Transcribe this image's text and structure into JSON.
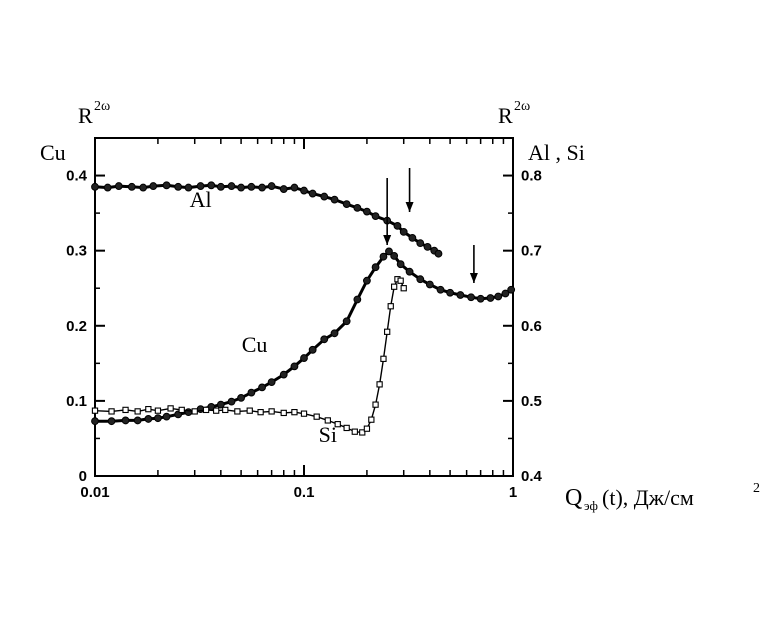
{
  "chart_data": {
    "type": "scatter",
    "x_scale": "log",
    "xlim": [
      0.01,
      1
    ],
    "x_ticks": [
      0.01,
      0.1,
      1
    ],
    "x_tick_labels": [
      "0.01",
      "0.1",
      "1"
    ],
    "ylim_left": [
      0,
      0.45
    ],
    "ylim_right": [
      0.4,
      0.85
    ],
    "y_ticks_left": [
      "0",
      "0.1",
      "0.2",
      "0.3",
      "0.4"
    ],
    "y_ticks_right": [
      "0.4",
      "0.5",
      "0.6",
      "0.7",
      "0.8"
    ],
    "left_axis": {
      "label_top": "R",
      "label_sup": "2ω",
      "label_sub": "Cu"
    },
    "right_axis": {
      "label_top": "R",
      "label_sup": "2ω",
      "label_sub": "Al , Si"
    },
    "xlabel": {
      "main": "Q",
      "sub": "эф",
      "rest": "(t),  Дж/см",
      "sup": "2"
    },
    "series": [
      {
        "name": "Al",
        "axis": "right",
        "marker": "filled-circle",
        "points": [
          [
            0.01,
            0.785
          ],
          [
            0.0115,
            0.784
          ],
          [
            0.013,
            0.786
          ],
          [
            0.015,
            0.785
          ],
          [
            0.017,
            0.784
          ],
          [
            0.019,
            0.786
          ],
          [
            0.022,
            0.787
          ],
          [
            0.025,
            0.785
          ],
          [
            0.028,
            0.784
          ],
          [
            0.032,
            0.786
          ],
          [
            0.036,
            0.787
          ],
          [
            0.04,
            0.785
          ],
          [
            0.045,
            0.786
          ],
          [
            0.05,
            0.784
          ],
          [
            0.056,
            0.785
          ],
          [
            0.063,
            0.784
          ],
          [
            0.07,
            0.786
          ],
          [
            0.08,
            0.782
          ],
          [
            0.09,
            0.784
          ],
          [
            0.1,
            0.78
          ],
          [
            0.11,
            0.776
          ],
          [
            0.125,
            0.772
          ],
          [
            0.14,
            0.768
          ],
          [
            0.16,
            0.762
          ],
          [
            0.18,
            0.757
          ],
          [
            0.2,
            0.752
          ],
          [
            0.22,
            0.746
          ],
          [
            0.25,
            0.74
          ],
          [
            0.28,
            0.733
          ],
          [
            0.3,
            0.725
          ],
          [
            0.33,
            0.717
          ],
          [
            0.36,
            0.71
          ],
          [
            0.39,
            0.705
          ],
          [
            0.42,
            0.7
          ],
          [
            0.44,
            0.696
          ]
        ]
      },
      {
        "name": "Cu",
        "axis": "left",
        "marker": "filled-circle",
        "points": [
          [
            0.01,
            0.073
          ],
          [
            0.012,
            0.073
          ],
          [
            0.014,
            0.074
          ],
          [
            0.016,
            0.074
          ],
          [
            0.018,
            0.076
          ],
          [
            0.02,
            0.077
          ],
          [
            0.022,
            0.079
          ],
          [
            0.025,
            0.082
          ],
          [
            0.028,
            0.085
          ],
          [
            0.032,
            0.089
          ],
          [
            0.036,
            0.092
          ],
          [
            0.04,
            0.095
          ],
          [
            0.045,
            0.099
          ],
          [
            0.05,
            0.104
          ],
          [
            0.056,
            0.111
          ],
          [
            0.063,
            0.118
          ],
          [
            0.07,
            0.125
          ],
          [
            0.08,
            0.135
          ],
          [
            0.09,
            0.146
          ],
          [
            0.1,
            0.157
          ],
          [
            0.11,
            0.168
          ],
          [
            0.125,
            0.182
          ],
          [
            0.14,
            0.19
          ],
          [
            0.16,
            0.206
          ],
          [
            0.18,
            0.235
          ],
          [
            0.2,
            0.26
          ],
          [
            0.22,
            0.278
          ],
          [
            0.24,
            0.292
          ],
          [
            0.255,
            0.299
          ],
          [
            0.27,
            0.293
          ],
          [
            0.29,
            0.282
          ],
          [
            0.32,
            0.272
          ],
          [
            0.36,
            0.262
          ],
          [
            0.4,
            0.255
          ],
          [
            0.45,
            0.248
          ],
          [
            0.5,
            0.244
          ],
          [
            0.56,
            0.241
          ],
          [
            0.63,
            0.238
          ],
          [
            0.7,
            0.236
          ],
          [
            0.78,
            0.237
          ],
          [
            0.85,
            0.239
          ],
          [
            0.92,
            0.243
          ],
          [
            0.98,
            0.248
          ]
        ]
      },
      {
        "name": "Si",
        "axis": "right",
        "marker": "open-square",
        "points": [
          [
            0.01,
            0.487
          ],
          [
            0.012,
            0.486
          ],
          [
            0.014,
            0.488
          ],
          [
            0.016,
            0.486
          ],
          [
            0.018,
            0.489
          ],
          [
            0.02,
            0.487
          ],
          [
            0.023,
            0.49
          ],
          [
            0.026,
            0.488
          ],
          [
            0.03,
            0.486
          ],
          [
            0.034,
            0.488
          ],
          [
            0.038,
            0.487
          ],
          [
            0.042,
            0.488
          ],
          [
            0.048,
            0.486
          ],
          [
            0.055,
            0.487
          ],
          [
            0.062,
            0.485
          ],
          [
            0.07,
            0.486
          ],
          [
            0.08,
            0.484
          ],
          [
            0.09,
            0.485
          ],
          [
            0.1,
            0.483
          ],
          [
            0.115,
            0.479
          ],
          [
            0.13,
            0.474
          ],
          [
            0.145,
            0.469
          ],
          [
            0.16,
            0.464
          ],
          [
            0.175,
            0.459
          ],
          [
            0.19,
            0.458
          ],
          [
            0.2,
            0.463
          ],
          [
            0.21,
            0.475
          ],
          [
            0.22,
            0.495
          ],
          [
            0.23,
            0.522
          ],
          [
            0.24,
            0.556
          ],
          [
            0.25,
            0.592
          ],
          [
            0.26,
            0.626
          ],
          [
            0.27,
            0.652
          ],
          [
            0.28,
            0.662
          ],
          [
            0.29,
            0.66
          ],
          [
            0.3,
            0.65
          ]
        ]
      }
    ],
    "annotations": [
      {
        "text": "Al",
        "near": "Al curve",
        "x": 0.032,
        "y": 0.758,
        "axis": "right"
      },
      {
        "text": "Cu",
        "near": "Cu curve",
        "x": 0.058,
        "y": 0.165,
        "axis": "left"
      },
      {
        "text": "Si",
        "near": "Si curve",
        "x": 0.13,
        "y": 0.445,
        "axis": "right"
      }
    ],
    "arrows_at_x": [
      0.25,
      0.32,
      0.65
    ],
    "grid": false,
    "legend": "none"
  }
}
